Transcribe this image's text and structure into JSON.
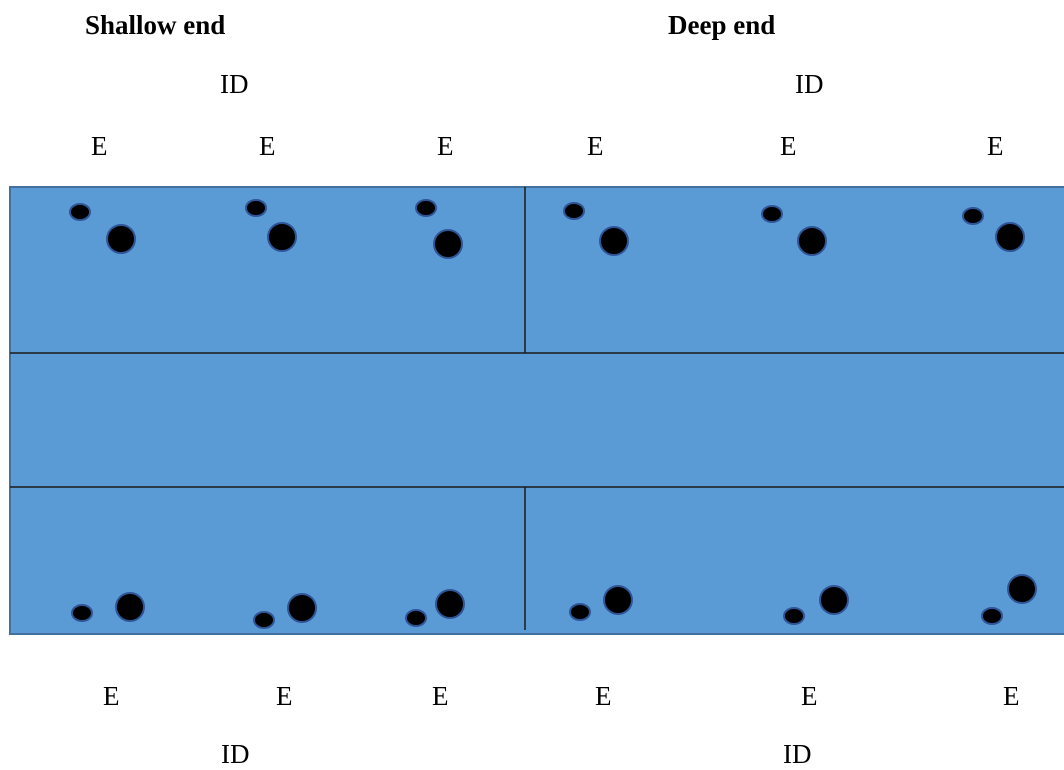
{
  "headers": {
    "shallow_end": "Shallow end",
    "deep_end": "Deep end"
  },
  "top_labels": {
    "id_left": "ID",
    "id_right": "ID",
    "e": [
      "E",
      "E",
      "E",
      "E",
      "E",
      "E"
    ]
  },
  "bottom_labels": {
    "id_left": "ID",
    "id_right": "ID",
    "e": [
      "E",
      "E",
      "E",
      "E",
      "E",
      "E"
    ]
  },
  "colors": {
    "water": "#5b9bd5",
    "border": "#41719c",
    "lane_line": "#1a1a1a",
    "marker_fill": "#000000",
    "marker_stroke": "#2f5597"
  }
}
